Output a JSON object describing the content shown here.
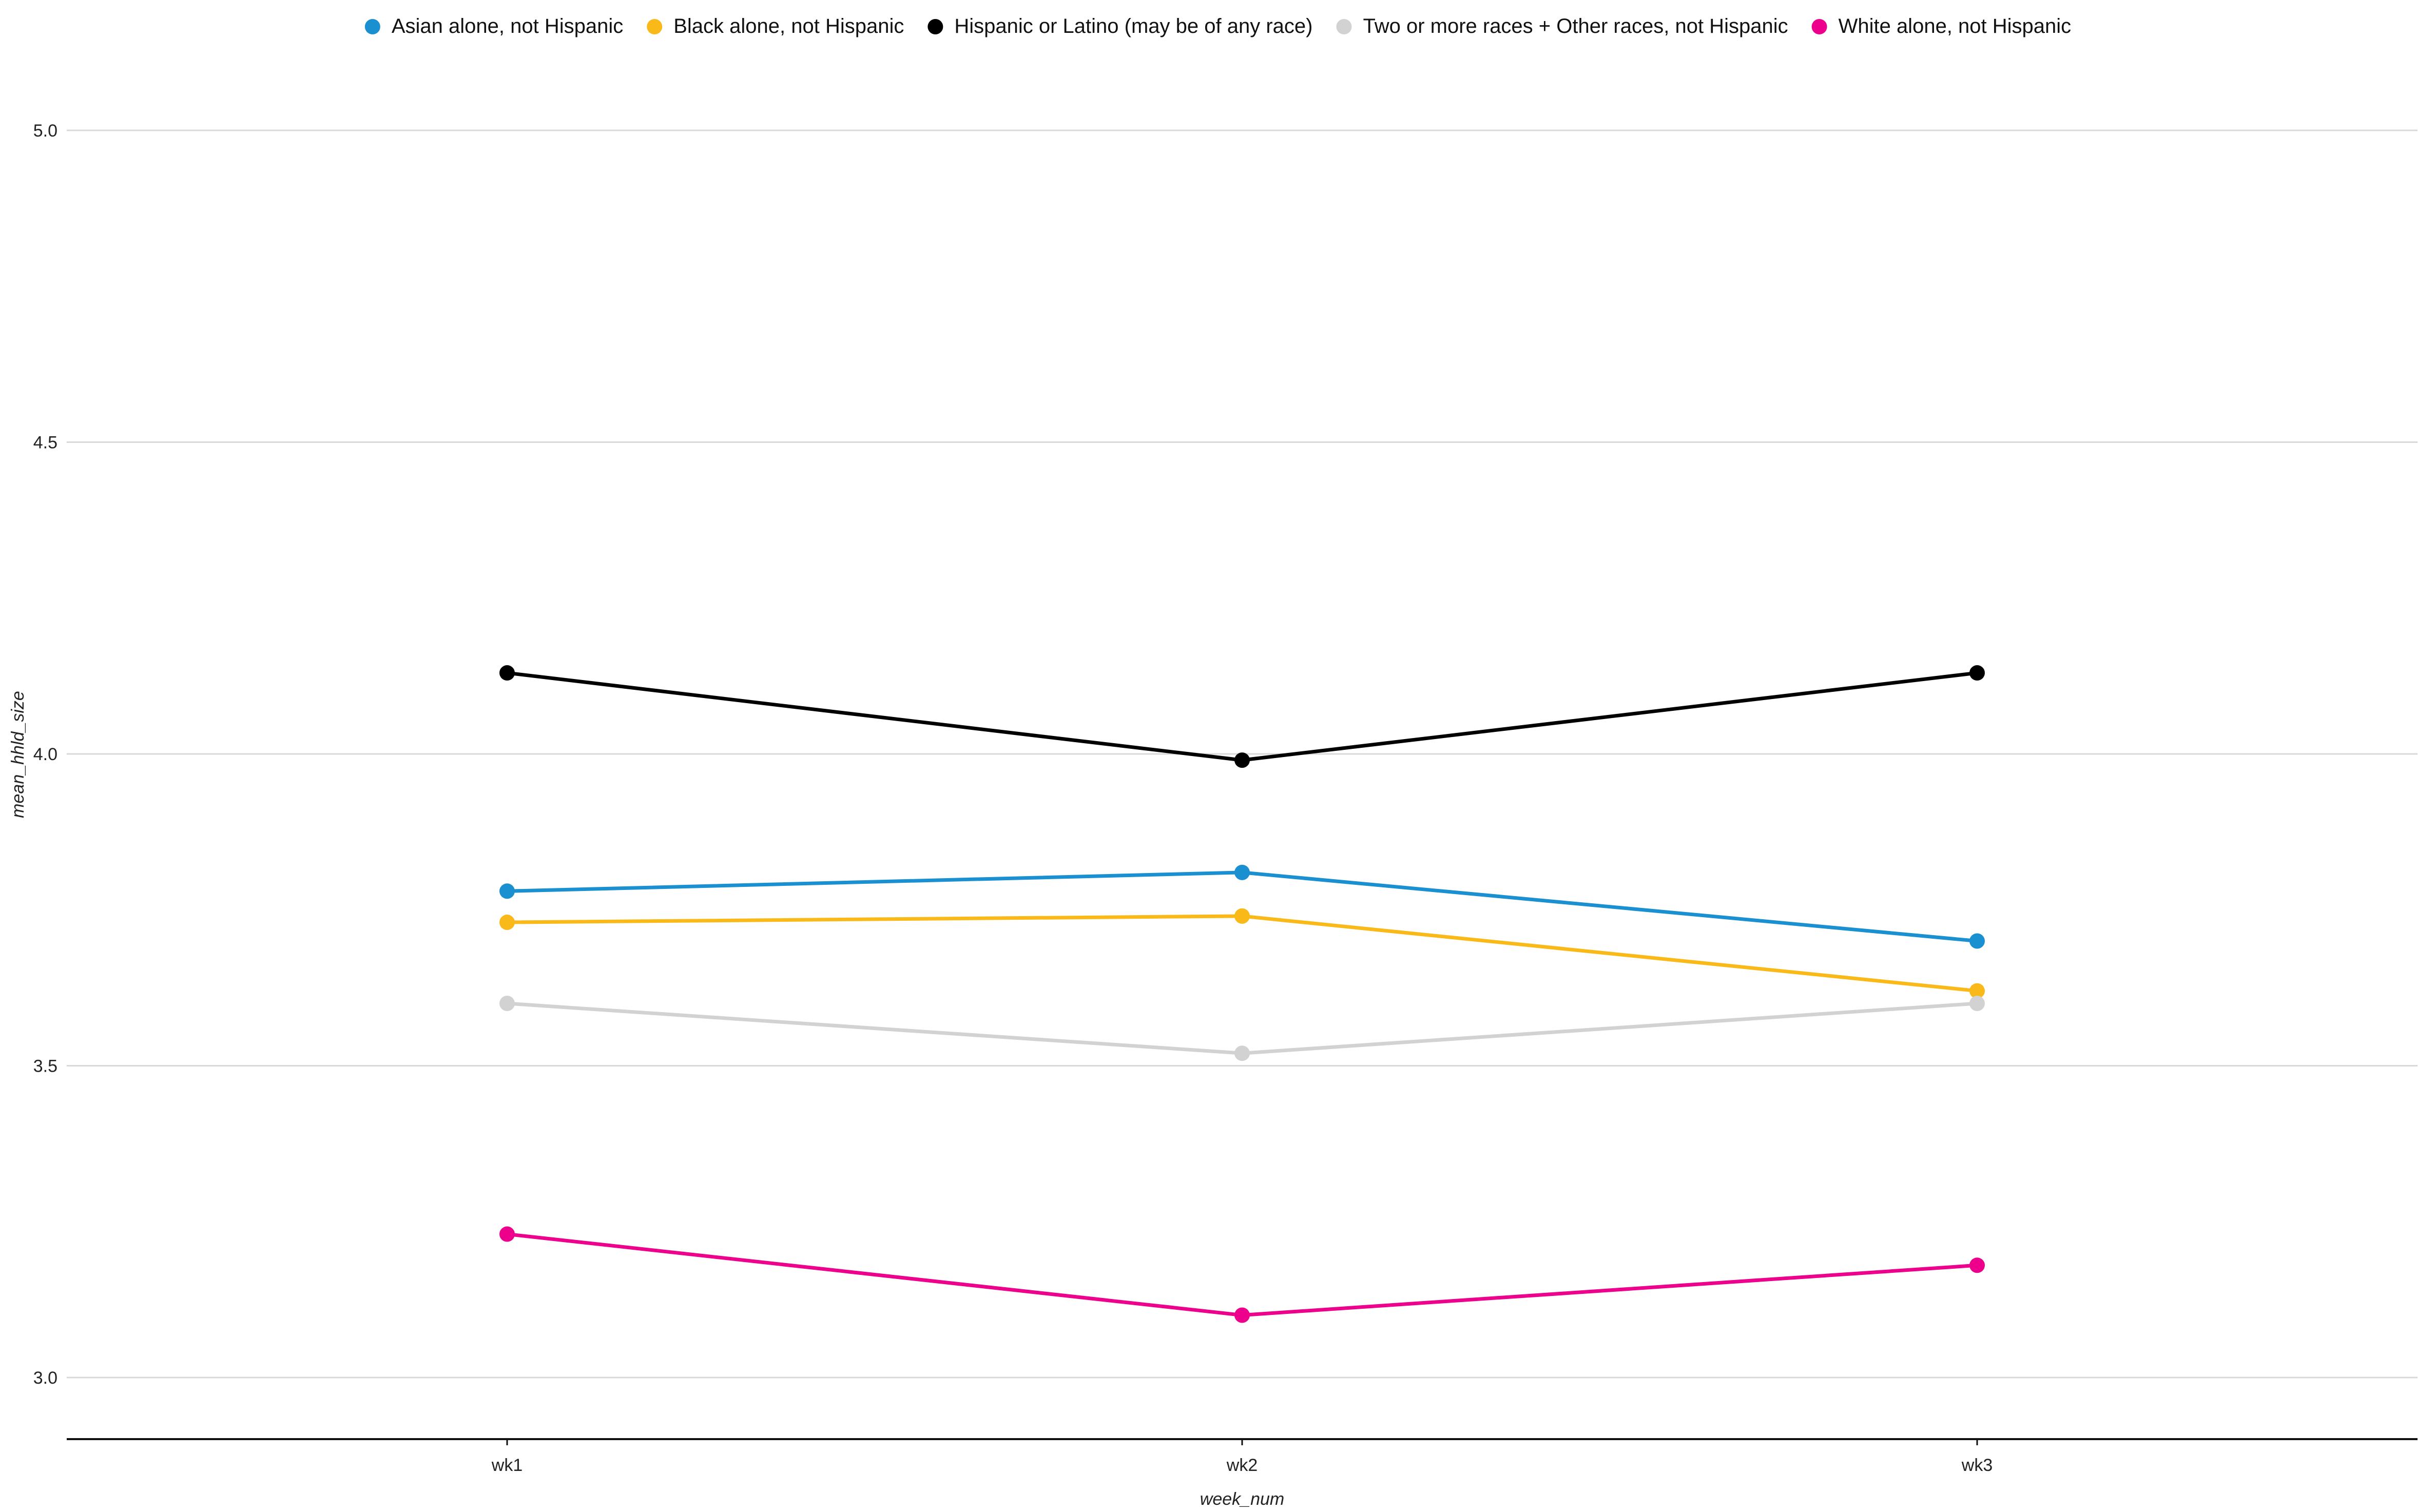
{
  "chart_data": {
    "type": "line",
    "title": "",
    "xlabel": "week_num",
    "ylabel": "mean_hhld_size",
    "categories": [
      "wk1",
      "wk2",
      "wk3"
    ],
    "ylim": [
      2.9,
      5.1
    ],
    "yticks": [
      "3.0",
      "3.5",
      "4.0",
      "4.5",
      "5.0"
    ],
    "grid": true,
    "legend_position": "top",
    "series": [
      {
        "name": "Asian alone, not Hispanic",
        "color": "#1a90d0",
        "values": [
          3.78,
          3.81,
          3.7
        ]
      },
      {
        "name": "Black alone, not Hispanic",
        "color": "#f9b918",
        "values": [
          3.73,
          3.74,
          3.62
        ]
      },
      {
        "name": "Hispanic or Latino (may be of any race)",
        "color": "#000000",
        "values": [
          4.13,
          3.99,
          4.13
        ]
      },
      {
        "name": "Two or more races + Other races, not Hispanic",
        "color": "#d2d2d2",
        "values": [
          3.6,
          3.52,
          3.6
        ]
      },
      {
        "name": "White alone, not Hispanic",
        "color": "#ec008c",
        "values": [
          3.23,
          3.1,
          3.18
        ]
      }
    ]
  }
}
